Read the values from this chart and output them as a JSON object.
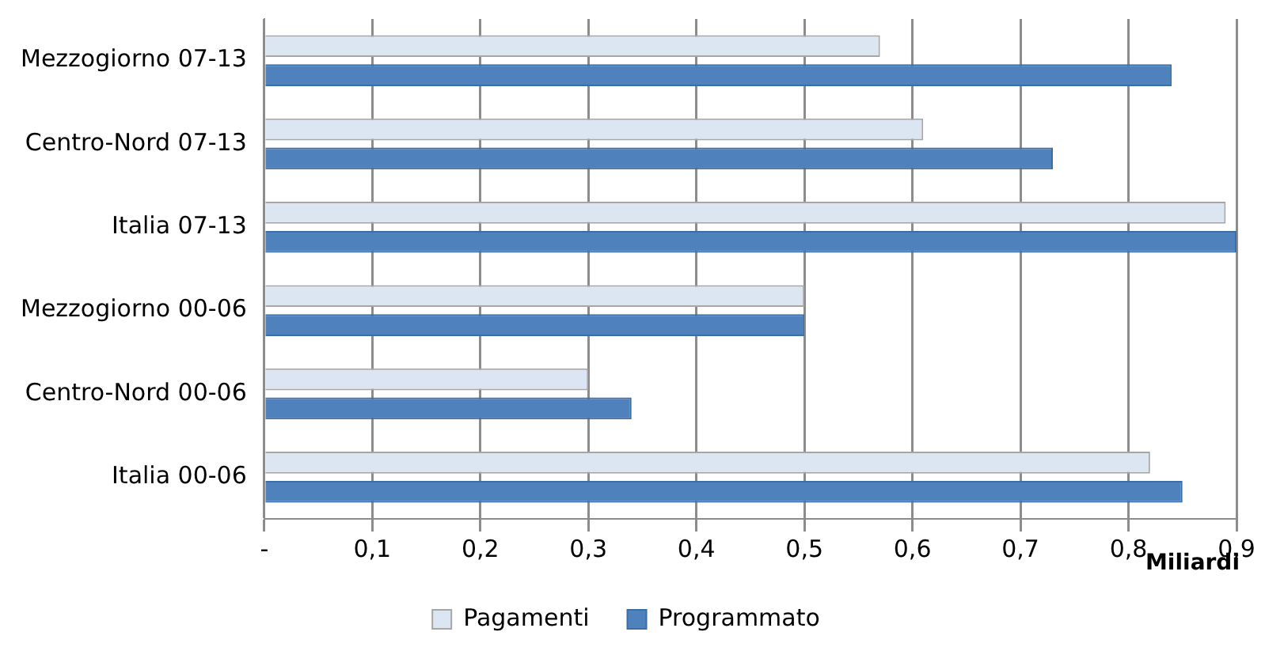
{
  "chart_data": {
    "type": "bar",
    "orientation": "horizontal",
    "categories": [
      "Mezzogiorno 07-13",
      "Centro-Nord 07-13",
      "Italia 07-13",
      "Mezzogiorno 00-06",
      "Centro-Nord 00-06",
      "Italia 00-06"
    ],
    "series": [
      {
        "name": "Pagamenti",
        "color": "#dce6f2",
        "values": [
          0.57,
          0.61,
          0.89,
          0.5,
          0.3,
          0.82
        ]
      },
      {
        "name": "Programmato",
        "color": "#4f81bd",
        "values": [
          0.84,
          0.73,
          0.9,
          0.5,
          0.34,
          0.85
        ]
      }
    ],
    "xlim": [
      0,
      0.9
    ],
    "xticks": [
      {
        "value": 0,
        "label": "-"
      },
      {
        "value": 0.1,
        "label": "0,1"
      },
      {
        "value": 0.2,
        "label": "0,2"
      },
      {
        "value": 0.3,
        "label": "0,3"
      },
      {
        "value": 0.4,
        "label": "0,4"
      },
      {
        "value": 0.5,
        "label": "0,5"
      },
      {
        "value": 0.6,
        "label": "0,6"
      },
      {
        "value": 0.7,
        "label": "0,7"
      },
      {
        "value": 0.8,
        "label": "0,8"
      },
      {
        "value": 0.9,
        "label": "0,9"
      }
    ],
    "xlabel": "Miliardi",
    "grid": "x",
    "legend": "bottom"
  }
}
